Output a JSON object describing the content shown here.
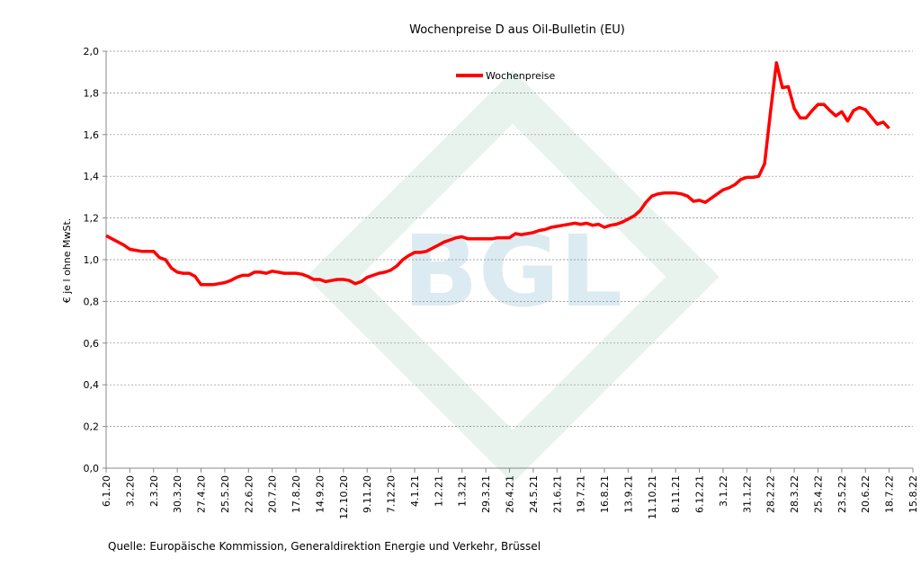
{
  "chart_data": {
    "type": "line",
    "title": "Wochenpreise D aus Oil-Bulletin (EU)",
    "y_label": "€ je l ohne MwSt.",
    "source": "Quelle: Europäische Kommission, Generaldirektion Energie und Verkehr, Brüssel",
    "watermark": "BGL",
    "legend": "top",
    "grid": true,
    "categories": [
      "6.1.20",
      null,
      null,
      null,
      "3.2.20",
      null,
      null,
      null,
      "2.3.20",
      null,
      null,
      null,
      "30.3.20",
      null,
      null,
      null,
      "27.4.20",
      null,
      null,
      null,
      "25.5.20",
      null,
      null,
      null,
      "22.6.20",
      null,
      null,
      null,
      "20.7.20",
      null,
      null,
      null,
      "17.8.20",
      null,
      null,
      null,
      "14.9.20",
      null,
      null,
      null,
      "12.10.20",
      null,
      null,
      null,
      "9.11.20",
      null,
      null,
      null,
      "7.12.20",
      null,
      null,
      null,
      "4.1.21",
      null,
      null,
      null,
      "1.2.21",
      null,
      null,
      null,
      "1.3.21",
      null,
      null,
      null,
      "29.3.21",
      null,
      null,
      null,
      "26.4.21",
      null,
      null,
      null,
      "24.5.21",
      null,
      null,
      null,
      "21.6.21",
      null,
      null,
      null,
      "19.7.21",
      null,
      null,
      null,
      "16.8.21",
      null,
      null,
      null,
      "13.9.21",
      null,
      null,
      null,
      "11.10.21",
      null,
      null,
      null,
      "8.11.21",
      null,
      null,
      null,
      "6.12.21",
      null,
      null,
      null,
      "3.1.22",
      null,
      null,
      null,
      "31.1.22",
      null,
      null,
      null,
      "28.2.22",
      null,
      null,
      null,
      "28.3.22",
      null,
      null,
      null,
      "25.4.22",
      null,
      null,
      null,
      "23.5.22",
      null,
      null,
      null,
      "20.6.22",
      null,
      null,
      null,
      "18.7.22",
      null,
      null,
      null,
      "15.8.22"
    ],
    "series": [
      {
        "name": "Wochenpreise",
        "color": "#ff0000",
        "values": [
          1.115,
          1.1,
          1.085,
          1.07,
          1.05,
          1.045,
          1.04,
          1.04,
          1.04,
          1.01,
          1.0,
          0.96,
          0.94,
          0.935,
          0.935,
          0.92,
          0.88,
          0.88,
          0.88,
          0.885,
          0.89,
          0.9,
          0.915,
          0.925,
          0.925,
          0.94,
          0.94,
          0.935,
          0.945,
          0.94,
          0.935,
          0.935,
          0.935,
          0.93,
          0.92,
          0.905,
          0.905,
          0.895,
          0.9,
          0.905,
          0.905,
          0.9,
          0.885,
          0.895,
          0.915,
          0.925,
          0.935,
          0.94,
          0.95,
          0.97,
          1.0,
          1.02,
          1.035,
          1.035,
          1.04,
          1.055,
          1.07,
          1.085,
          1.095,
          1.105,
          1.11,
          1.1,
          1.1,
          1.1,
          1.1,
          1.1,
          1.105,
          1.105,
          1.105,
          1.125,
          1.12,
          1.125,
          1.13,
          1.14,
          1.145,
          1.155,
          1.16,
          1.165,
          1.17,
          1.175,
          1.17,
          1.175,
          1.165,
          1.17,
          1.155,
          1.165,
          1.17,
          1.18,
          1.195,
          1.21,
          1.235,
          1.275,
          1.305,
          1.315,
          1.32,
          1.32,
          1.32,
          1.315,
          1.305,
          1.28,
          1.285,
          1.275,
          1.295,
          1.315,
          1.335,
          1.345,
          1.36,
          1.385,
          1.395,
          1.395,
          1.4,
          1.46,
          1.71,
          1.945,
          1.825,
          1.83,
          1.725,
          1.68,
          1.68,
          1.715,
          1.745,
          1.745,
          1.715,
          1.69,
          1.71,
          1.665,
          1.715,
          1.73,
          1.72,
          1.685,
          1.65,
          1.66,
          1.63,
          null,
          null,
          null,
          null
        ]
      }
    ],
    "ylim": [
      0,
      2
    ],
    "yticks": [
      {
        "value": 0,
        "label": "0,0"
      },
      {
        "value": 0.2,
        "label": "0,2"
      },
      {
        "value": 0.4,
        "label": "0,4"
      },
      {
        "value": 0.6,
        "label": "0,6"
      },
      {
        "value": 0.8,
        "label": "0,8"
      },
      {
        "value": 1.0,
        "label": "1,0"
      },
      {
        "value": 1.2,
        "label": "1,2"
      },
      {
        "value": 1.4,
        "label": "1,4"
      },
      {
        "value": 1.6,
        "label": "1,6"
      },
      {
        "value": 1.8,
        "label": "1,8"
      },
      {
        "value": 2.0,
        "label": "2,0"
      }
    ]
  }
}
